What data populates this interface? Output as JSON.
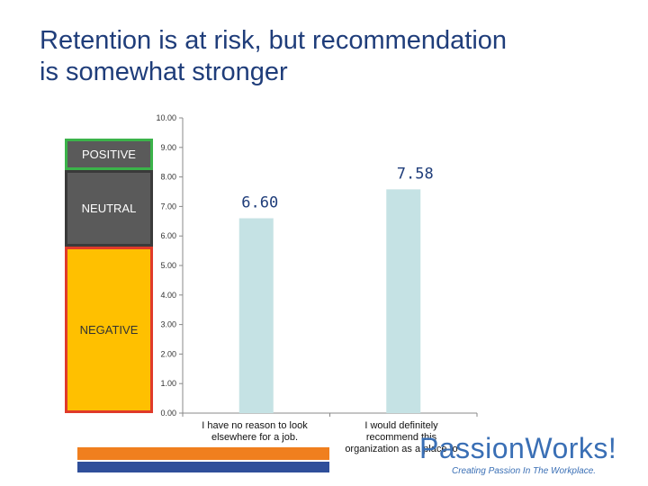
{
  "title": {
    "line1": "Retention is at risk, but recommendation",
    "line2": "is somewhat stronger"
  },
  "zones": {
    "positive": "POSITIVE",
    "neutral": "NEUTRAL",
    "negative": "NEGATIVE"
  },
  "chart_data": {
    "type": "bar",
    "categories": [
      "I have no reason to look elsewhere for a job.",
      "I would definitely recommend this organization as a place to"
    ],
    "values": [
      6.6,
      7.58
    ],
    "data_labels": [
      "6.60",
      "7.58"
    ],
    "ylim": [
      0,
      10
    ],
    "yticks": [
      "0.00",
      "1.00",
      "2.00",
      "3.00",
      "4.00",
      "5.00",
      "6.00",
      "7.00",
      "8.00",
      "9.00",
      "10.00"
    ],
    "bar_color": "#c5e2e4",
    "grid": false
  },
  "category_labels": [
    {
      "line1": "I have no reason to look",
      "line2": "elsewhere for a job."
    },
    {
      "line1": "I would definitely",
      "line2": "recommend this",
      "line3": "organization as a place to"
    }
  ],
  "logo": {
    "name": "PassionWorks!",
    "tagline": "Creating Passion In The Workplace."
  },
  "colors": {
    "title": "#1f3d7a",
    "positive_border": "#3bb34a",
    "negative_fill": "#ffc000",
    "negative_border": "#e03a2a",
    "brand_orange": "#f07f1e",
    "brand_blue": "#3a6fb5"
  }
}
